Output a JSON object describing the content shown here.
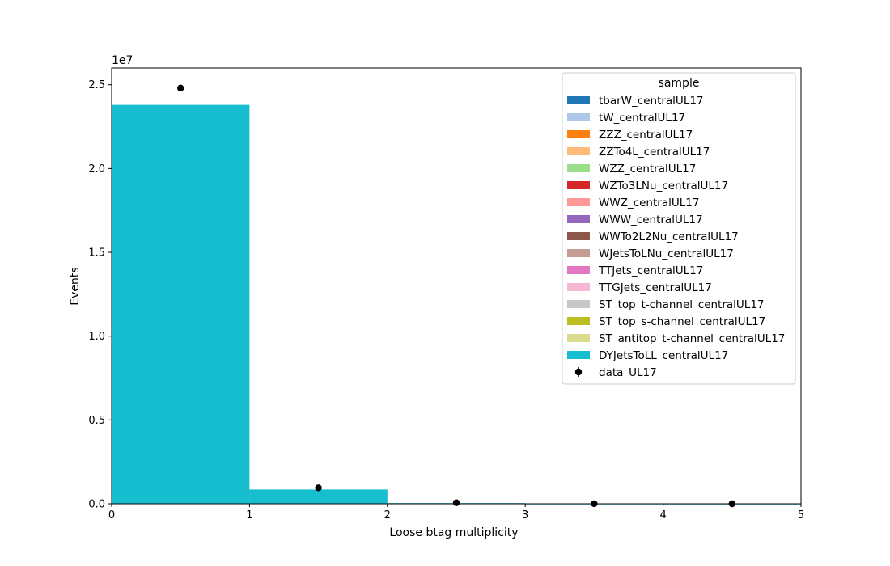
{
  "chart_data": {
    "type": "bar",
    "title": "",
    "xlabel": "Loose btag multiplicity",
    "ylabel": "Events",
    "y_scale_label": "1e7",
    "xlim": [
      0,
      5
    ],
    "ylim": [
      0,
      26000000.0
    ],
    "x_ticks": [
      0,
      1,
      2,
      3,
      4,
      5
    ],
    "x_tick_labels": [
      "0",
      "1",
      "2",
      "3",
      "4",
      "5"
    ],
    "y_ticks": [
      0,
      5000000,
      10000000,
      15000000,
      20000000,
      25000000
    ],
    "y_tick_labels": [
      "0.0",
      "0.5",
      "1.0",
      "1.5",
      "2.0",
      "2.5"
    ],
    "bin_edges": [
      0,
      1,
      2,
      3,
      4,
      5
    ],
    "stacked": true,
    "series": [
      {
        "name": "tbarW_centralUL17",
        "color": "#1f77b4",
        "values": [
          0,
          0,
          0,
          0,
          0
        ]
      },
      {
        "name": "tW_centralUL17",
        "color": "#aec7e8",
        "values": [
          0,
          0,
          0,
          0,
          0
        ]
      },
      {
        "name": "ZZZ_centralUL17",
        "color": "#ff7f0e",
        "values": [
          0,
          0,
          0,
          0,
          0
        ]
      },
      {
        "name": "ZZTo4L_centralUL17",
        "color": "#ffbb78",
        "values": [
          0,
          0,
          0,
          0,
          0
        ]
      },
      {
        "name": "WZZ_centralUL17",
        "color": "#98df8a",
        "values": [
          0,
          0,
          0,
          0,
          0
        ]
      },
      {
        "name": "WZTo3LNu_centralUL17",
        "color": "#d62728",
        "values": [
          0,
          0,
          0,
          0,
          0
        ]
      },
      {
        "name": "WWZ_centralUL17",
        "color": "#ff9896",
        "values": [
          0,
          0,
          0,
          0,
          0
        ]
      },
      {
        "name": "WWW_centralUL17",
        "color": "#9467bd",
        "values": [
          0,
          0,
          0,
          0,
          0
        ]
      },
      {
        "name": "WWTo2L2Nu_centralUL17",
        "color": "#8c564b",
        "values": [
          0,
          0,
          0,
          0,
          0
        ]
      },
      {
        "name": "WJetsToLNu_centralUL17",
        "color": "#c49c94",
        "values": [
          0,
          0,
          0,
          0,
          0
        ]
      },
      {
        "name": "TTJets_centralUL17",
        "color": "#e377c2",
        "values": [
          0,
          0,
          0,
          0,
          0
        ]
      },
      {
        "name": "TTGJets_centralUL17",
        "color": "#f7b6d2",
        "values": [
          0,
          0,
          0,
          0,
          0
        ]
      },
      {
        "name": "ST_top_t-channel_centralUL17",
        "color": "#c7c7c7",
        "values": [
          0,
          0,
          0,
          0,
          0
        ]
      },
      {
        "name": "ST_top_s-channel_centralUL17",
        "color": "#bcbd22",
        "values": [
          0,
          0,
          0,
          0,
          0
        ]
      },
      {
        "name": "ST_antitop_t-channel_centralUL17",
        "color": "#dbdb8d",
        "values": [
          0,
          0,
          0,
          0,
          0
        ]
      },
      {
        "name": "DYJetsToLL_centralUL17",
        "color": "#17becf",
        "values": [
          23800000,
          850000,
          40000,
          2000,
          100
        ]
      }
    ],
    "data_points": {
      "name": "data_UL17",
      "color": "#000000",
      "x": [
        0.5,
        1.5,
        2.5,
        3.5,
        4.5
      ],
      "y": [
        24800000,
        950000,
        60000,
        3000,
        200
      ]
    },
    "legend": {
      "title": "sample",
      "placement": "top-right"
    },
    "grid": false
  }
}
